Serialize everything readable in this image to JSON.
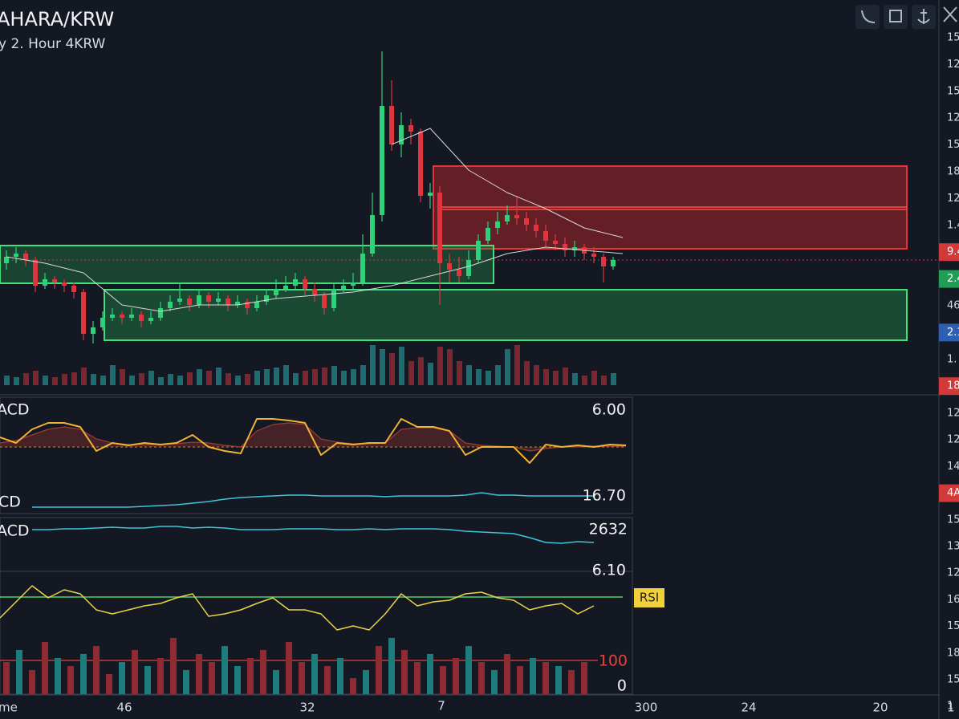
{
  "header": {
    "title": "AHARA/KRW",
    "subtitle": "y 2. Hour 4KRW"
  },
  "right_axis": {
    "main": [
      {
        "text": "15"
      },
      {
        "text": "12"
      },
      {
        "text": "15"
      },
      {
        "text": "12"
      },
      {
        "text": "15"
      },
      {
        "text": "18"
      },
      {
        "text": "12"
      },
      {
        "text": "1.4"
      },
      {
        "text": "9.4",
        "badge": "#d23a3a"
      },
      {
        "text": "2.4",
        "badge": "#1f9e55"
      },
      {
        "text": "46"
      },
      {
        "text": "2.1",
        "badge": "#2f5fb3"
      },
      {
        "text": "1."
      },
      {
        "text": "18",
        "badge": "#d23a3a"
      }
    ],
    "lower": [
      {
        "text": "12"
      },
      {
        "text": "12"
      },
      {
        "text": "14"
      },
      {
        "text": "4A",
        "badge": "#d23a3a"
      },
      {
        "text": "15"
      },
      {
        "text": "13"
      },
      {
        "text": "12"
      },
      {
        "text": "16"
      },
      {
        "text": "15"
      },
      {
        "text": "18"
      },
      {
        "text": "15"
      },
      {
        "text": "1"
      }
    ]
  },
  "panels": {
    "macd_label": "ACD",
    "macd_value": "6.00",
    "signal_label": "CD",
    "signal_value": "16.70",
    "macd2_label": "ACD",
    "macd2_value": "2632",
    "rsi_value": "6.10",
    "rsi_label": "RSI",
    "hist_top": "100",
    "hist_zero": "0"
  },
  "time_axis": [
    "me",
    "46",
    "32",
    "7",
    "300",
    "24",
    "20",
    "1"
  ],
  "colors": {
    "up": "#2fd07a",
    "down": "#e0353f",
    "vol_up": "#1e7d7c",
    "vol_down": "#8f2a33",
    "macd": "#f2b233",
    "signal": "#9a3e36",
    "cyan": "#3cc6d9",
    "rsi": "#e8d44a",
    "ma": "#d9d9d9"
  },
  "price": {
    "candles": [
      [
        33,
        37,
        31,
        35
      ],
      [
        35,
        38,
        33,
        36
      ],
      [
        36,
        37,
        32,
        34
      ],
      [
        34,
        35,
        24,
        26
      ],
      [
        26,
        30,
        25,
        28
      ],
      [
        28,
        29,
        25,
        27
      ],
      [
        27,
        28,
        24,
        26
      ],
      [
        26,
        27,
        22,
        24
      ],
      [
        24,
        25,
        9,
        11
      ],
      [
        11,
        15,
        8,
        13
      ],
      [
        13,
        18,
        12,
        16
      ],
      [
        16,
        19,
        15,
        17
      ],
      [
        17,
        18,
        14,
        16
      ],
      [
        16,
        19,
        15,
        17
      ],
      [
        17,
        18,
        13,
        15
      ],
      [
        15,
        18,
        14,
        16
      ],
      [
        16,
        21,
        15,
        19
      ],
      [
        19,
        23,
        18,
        21
      ],
      [
        21,
        27,
        20,
        22
      ],
      [
        22,
        23,
        18,
        20
      ],
      [
        20,
        25,
        19,
        23
      ],
      [
        23,
        24,
        19,
        21
      ],
      [
        21,
        24,
        20,
        22
      ],
      [
        22,
        23,
        18,
        20
      ],
      [
        20,
        23,
        19,
        21
      ],
      [
        21,
        22,
        17,
        19
      ],
      [
        19,
        23,
        18,
        21
      ],
      [
        21,
        25,
        20,
        23
      ],
      [
        23,
        28,
        22,
        25
      ],
      [
        25,
        29,
        24,
        26
      ],
      [
        26,
        30,
        25,
        28
      ],
      [
        28,
        29,
        23,
        25
      ],
      [
        25,
        27,
        21,
        23
      ],
      [
        23,
        24,
        17,
        19
      ],
      [
        19,
        27,
        18,
        25
      ],
      [
        25,
        28,
        24,
        26
      ],
      [
        26,
        30,
        25,
        27
      ],
      [
        27,
        42,
        26,
        36
      ],
      [
        36,
        55,
        35,
        48
      ],
      [
        48,
        99,
        46,
        82
      ],
      [
        82,
        90,
        68,
        70
      ],
      [
        70,
        80,
        66,
        76
      ],
      [
        76,
        78,
        70,
        74
      ],
      [
        74,
        75,
        52,
        54
      ],
      [
        54,
        58,
        50,
        55
      ],
      [
        55,
        57,
        20,
        33
      ],
      [
        33,
        36,
        27,
        31
      ],
      [
        31,
        35,
        27,
        29
      ],
      [
        29,
        37,
        28,
        34
      ],
      [
        34,
        42,
        33,
        40
      ],
      [
        40,
        46,
        39,
        44
      ],
      [
        44,
        49,
        42,
        46
      ],
      [
        46,
        51,
        45,
        48
      ],
      [
        48,
        54,
        45,
        47
      ],
      [
        47,
        49,
        43,
        45
      ],
      [
        45,
        47,
        41,
        43
      ],
      [
        43,
        45,
        38,
        40
      ],
      [
        40,
        42,
        37,
        39
      ],
      [
        39,
        41,
        35,
        37
      ],
      [
        37,
        40,
        35,
        38
      ],
      [
        38,
        39,
        34,
        36
      ],
      [
        36,
        38,
        33,
        35
      ],
      [
        35,
        36,
        27,
        32
      ],
      [
        32,
        35,
        31,
        34
      ]
    ],
    "volume": [
      12,
      10,
      15,
      18,
      12,
      10,
      14,
      16,
      22,
      14,
      12,
      25,
      20,
      12,
      15,
      18,
      10,
      14,
      12,
      16,
      20,
      18,
      22,
      15,
      12,
      14,
      18,
      20,
      22,
      25,
      15,
      18,
      20,
      22,
      24,
      18,
      20,
      25,
      50,
      45,
      40,
      48,
      30,
      35,
      28,
      48,
      45,
      30,
      25,
      20,
      18,
      25,
      45,
      50,
      30,
      25,
      20,
      18,
      22,
      15,
      12,
      18,
      12,
      15
    ],
    "ma_slow": [
      35,
      33,
      30,
      20,
      18,
      20,
      20,
      22,
      23,
      24,
      26,
      29,
      32,
      36,
      38,
      37,
      36
    ],
    "ma_fast": [
      null,
      null,
      null,
      null,
      null,
      null,
      null,
      null,
      null,
      null,
      70,
      75,
      62,
      55,
      50,
      44,
      41
    ]
  },
  "macd": {
    "line": [
      12,
      5,
      22,
      30,
      30,
      25,
      -5,
      5,
      2,
      5,
      3,
      5,
      15,
      0,
      -5,
      -8,
      35,
      35,
      33,
      30,
      -10,
      5,
      3,
      5,
      5,
      35,
      25,
      25,
      20,
      -10,
      0,
      0,
      0,
      -20,
      3,
      0,
      2,
      0,
      3,
      2
    ],
    "signal": [
      5,
      8,
      15,
      22,
      25,
      22,
      10,
      5,
      3,
      3,
      3,
      4,
      6,
      5,
      2,
      0,
      20,
      28,
      30,
      28,
      10,
      6,
      4,
      4,
      5,
      22,
      24,
      24,
      20,
      5,
      2,
      1,
      0,
      -5,
      -2,
      0,
      0,
      1,
      1,
      1
    ],
    "cd": [
      0,
      0,
      0,
      0,
      0,
      0,
      0,
      1,
      2,
      3,
      5,
      7,
      10,
      12,
      13,
      14,
      15,
      15,
      14,
      14,
      14,
      14,
      13,
      14,
      14,
      14,
      14,
      15,
      18,
      15,
      15,
      14,
      14,
      14,
      14,
      14
    ]
  },
  "macd2": {
    "line": [
      20,
      20,
      21,
      21,
      22,
      23,
      22,
      22,
      24,
      24,
      22,
      23,
      22,
      20,
      20,
      20,
      21,
      21,
      21,
      20,
      20,
      21,
      20,
      21,
      21,
      21,
      20,
      18,
      17,
      16,
      15,
      10,
      4,
      3,
      5,
      4
    ]
  },
  "rsi": {
    "line": [
      20,
      40,
      60,
      45,
      55,
      50,
      30,
      25,
      30,
      35,
      38,
      45,
      50,
      22,
      25,
      30,
      38,
      45,
      30,
      30,
      25,
      5,
      10,
      5,
      25,
      50,
      35,
      40,
      42,
      50,
      52,
      45,
      42,
      30,
      35,
      38,
      25,
      35
    ],
    "hist": [
      40,
      55,
      30,
      65,
      45,
      35,
      50,
      60,
      25,
      40,
      55,
      35,
      45,
      70,
      30,
      50,
      40,
      60,
      35,
      45,
      55,
      30,
      65,
      40,
      50,
      35,
      45,
      20,
      30,
      60,
      70,
      55,
      40,
      50,
      35,
      45,
      60,
      40,
      30,
      50,
      35,
      45,
      40,
      35,
      30,
      40
    ],
    "hist_colors": [
      "down",
      "up",
      "down",
      "down",
      "up",
      "down",
      "up",
      "down",
      "down",
      "up",
      "down",
      "up",
      "down",
      "down",
      "up",
      "down",
      "down",
      "up",
      "up",
      "down",
      "down",
      "up",
      "down",
      "down",
      "up",
      "down",
      "up",
      "down",
      "up",
      "down",
      "up",
      "down",
      "down",
      "up",
      "down",
      "down",
      "up",
      "down",
      "up",
      "down",
      "down",
      "up",
      "down",
      "up",
      "down",
      "down"
    ]
  }
}
